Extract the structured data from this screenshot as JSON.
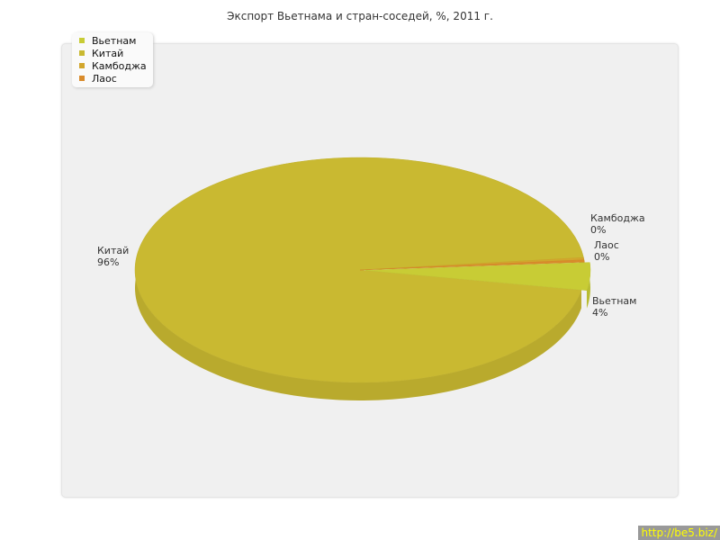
{
  "chart_data": {
    "type": "pie",
    "title": "Экспорт Вьетнама и стран-соседей, %, 2011 г.",
    "categories": [
      "Вьетнам",
      "Китай",
      "Камбоджа",
      "Лаос"
    ],
    "values": [
      4,
      96,
      0,
      0
    ],
    "data_labels": [
      "4%",
      "96%",
      "0%",
      "0%"
    ],
    "colors": [
      "#c8cc35",
      "#c9b931",
      "#d2a62c",
      "#d98b2b"
    ],
    "legend_position": "top-left",
    "style": "3d"
  },
  "watermark": "http://be5.biz/"
}
